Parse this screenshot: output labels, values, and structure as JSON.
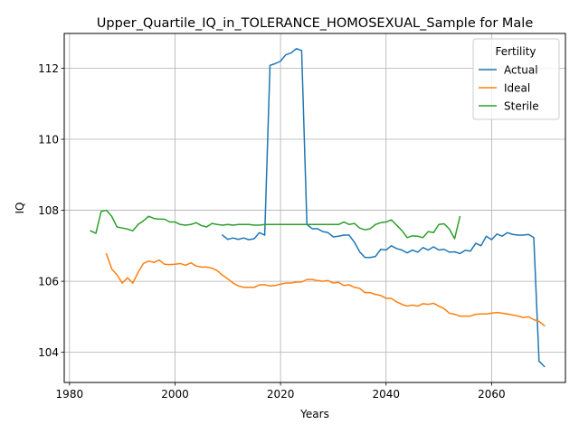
{
  "chart_data": {
    "type": "line",
    "title": "Upper_Quartile_IQ_in_TOLERANCE_HOMOSEXUAL_Sample for Male",
    "xlabel": "Years",
    "ylabel": "IQ",
    "xlim": [
      1979,
      2074
    ],
    "ylim": [
      103.15,
      112.98
    ],
    "xticks": [
      1980,
      2000,
      2020,
      2040,
      2060
    ],
    "yticks": [
      104,
      106,
      108,
      110,
      112
    ],
    "grid": true,
    "legend": {
      "title": "Fertility",
      "position": "top-right"
    },
    "series": [
      {
        "name": "Actual",
        "color": "#1f77b4",
        "x": [
          2009,
          2010,
          2011,
          2012,
          2013,
          2014,
          2015,
          2016,
          2017,
          2018,
          2019,
          2020,
          2021,
          2022,
          2023,
          2024,
          2025,
          2026,
          2027,
          2028,
          2029,
          2030,
          2031,
          2032,
          2033,
          2034,
          2035,
          2036,
          2037,
          2038,
          2039,
          2040,
          2041,
          2042,
          2043,
          2044,
          2045,
          2046,
          2047,
          2048,
          2049,
          2050,
          2051,
          2052,
          2053,
          2054,
          2055,
          2056,
          2057,
          2058,
          2059,
          2060,
          2061,
          2062,
          2063,
          2064,
          2065,
          2066,
          2067,
          2068,
          2069,
          2070
        ],
        "y": [
          107.3,
          107.18,
          107.22,
          107.18,
          107.22,
          107.17,
          107.2,
          107.37,
          107.3,
          112.08,
          112.13,
          112.2,
          112.38,
          112.43,
          112.55,
          112.5,
          107.6,
          107.48,
          107.48,
          107.4,
          107.37,
          107.25,
          107.27,
          107.3,
          107.3,
          107.1,
          106.83,
          106.67,
          106.67,
          106.7,
          106.9,
          106.88,
          107.0,
          106.92,
          106.88,
          106.8,
          106.88,
          106.82,
          106.95,
          106.88,
          106.97,
          106.88,
          106.9,
          106.82,
          106.83,
          106.78,
          106.87,
          106.85,
          107.07,
          107.0,
          107.27,
          107.17,
          107.33,
          107.27,
          107.37,
          107.32,
          107.3,
          107.3,
          107.32,
          107.23,
          103.75,
          103.6
        ]
      },
      {
        "name": "Ideal",
        "color": "#ff7f0e",
        "x": [
          1987,
          1988,
          1989,
          1990,
          1991,
          1992,
          1993,
          1994,
          1995,
          1996,
          1997,
          1998,
          1999,
          2000,
          2001,
          2002,
          2003,
          2004,
          2005,
          2006,
          2007,
          2008,
          2009,
          2010,
          2011,
          2012,
          2013,
          2014,
          2015,
          2016,
          2017,
          2018,
          2019,
          2020,
          2021,
          2022,
          2023,
          2024,
          2025,
          2026,
          2027,
          2028,
          2029,
          2030,
          2031,
          2032,
          2033,
          2034,
          2035,
          2036,
          2037,
          2038,
          2039,
          2040,
          2041,
          2042,
          2043,
          2044,
          2045,
          2046,
          2047,
          2048,
          2049,
          2050,
          2051,
          2052,
          2053,
          2054,
          2055,
          2056,
          2057,
          2058,
          2059,
          2060,
          2061,
          2062,
          2063,
          2064,
          2065,
          2066,
          2067,
          2068,
          2069,
          2070
        ],
        "y": [
          106.77,
          106.35,
          106.18,
          105.95,
          106.1,
          105.95,
          106.25,
          106.5,
          106.57,
          106.53,
          106.6,
          106.48,
          106.47,
          106.48,
          106.5,
          106.45,
          106.52,
          106.43,
          106.4,
          106.4,
          106.37,
          106.3,
          106.17,
          106.07,
          105.95,
          105.87,
          105.83,
          105.83,
          105.83,
          105.9,
          105.9,
          105.87,
          105.88,
          105.92,
          105.95,
          105.95,
          105.98,
          105.98,
          106.05,
          106.05,
          106.02,
          106.0,
          106.02,
          105.95,
          105.97,
          105.88,
          105.9,
          105.83,
          105.8,
          105.68,
          105.68,
          105.63,
          105.6,
          105.52,
          105.52,
          105.42,
          105.35,
          105.3,
          105.33,
          105.3,
          105.37,
          105.35,
          105.38,
          105.3,
          105.23,
          105.1,
          105.07,
          105.02,
          105.02,
          105.02,
          105.07,
          105.08,
          105.08,
          105.1,
          105.12,
          105.1,
          105.08,
          105.05,
          105.02,
          104.98,
          105.0,
          104.92,
          104.87,
          104.75
        ]
      },
      {
        "name": "Sterile",
        "color": "#2ca02c",
        "x": [
          1984,
          1985,
          1986,
          1987,
          1988,
          1989,
          1990,
          1991,
          1992,
          1993,
          1994,
          1995,
          1996,
          1997,
          1998,
          1999,
          2000,
          2001,
          2002,
          2003,
          2004,
          2005,
          2006,
          2007,
          2008,
          2009,
          2010,
          2011,
          2012,
          2013,
          2014,
          2015,
          2016,
          2017,
          2018,
          2019,
          2020,
          2021,
          2022,
          2023,
          2024,
          2025,
          2026,
          2027,
          2028,
          2029,
          2030,
          2031,
          2032,
          2033,
          2034,
          2035,
          2036,
          2037,
          2038,
          2039,
          2040,
          2041,
          2042,
          2043,
          2044,
          2045,
          2046,
          2047,
          2048,
          2049,
          2050,
          2051,
          2052,
          2053,
          2054
        ],
        "y": [
          107.42,
          107.35,
          107.97,
          108.0,
          107.83,
          107.53,
          107.5,
          107.47,
          107.42,
          107.6,
          107.7,
          107.83,
          107.77,
          107.75,
          107.75,
          107.67,
          107.67,
          107.6,
          107.58,
          107.6,
          107.65,
          107.57,
          107.53,
          107.63,
          107.6,
          107.58,
          107.6,
          107.58,
          107.6,
          107.6,
          107.6,
          107.58,
          107.58,
          107.6,
          107.6,
          107.6,
          107.6,
          107.6,
          107.6,
          107.6,
          107.6,
          107.6,
          107.6,
          107.6,
          107.6,
          107.6,
          107.6,
          107.6,
          107.67,
          107.6,
          107.63,
          107.5,
          107.45,
          107.48,
          107.6,
          107.65,
          107.67,
          107.73,
          107.58,
          107.43,
          107.23,
          107.28,
          107.27,
          107.23,
          107.4,
          107.37,
          107.6,
          107.62,
          107.47,
          107.2,
          107.82
        ]
      }
    ]
  }
}
